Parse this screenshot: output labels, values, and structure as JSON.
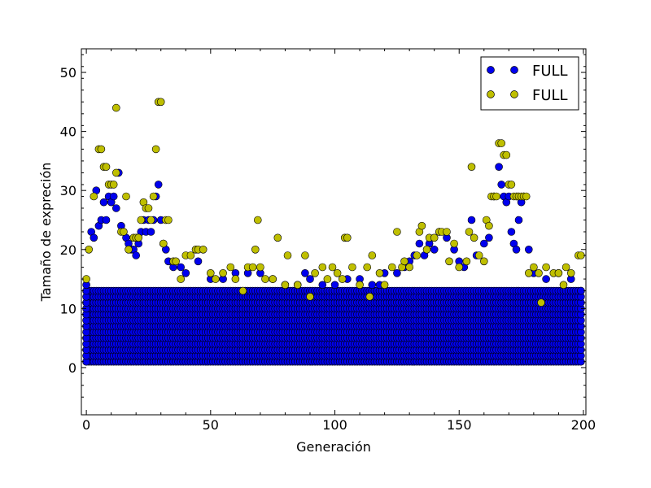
{
  "chart_data": {
    "type": "scatter",
    "title": "",
    "xlabel": "Generación",
    "ylabel": "Tamaño de expreción",
    "xlim": [
      -2,
      201
    ],
    "ylim": [
      -8,
      54
    ],
    "xticks": [
      0,
      50,
      100,
      150,
      200
    ],
    "yticks": [
      0,
      10,
      20,
      30,
      40,
      50
    ],
    "grid": false,
    "legend_position": "top-right",
    "series": [
      {
        "name": "FULL",
        "color": "#0000ee",
        "edge": "#000000",
        "points": [
          [
            0,
            1
          ],
          [
            0,
            2
          ],
          [
            0,
            3
          ],
          [
            0,
            4
          ],
          [
            0,
            5
          ],
          [
            0,
            6
          ],
          [
            0,
            7
          ],
          [
            0,
            8
          ],
          [
            0,
            9
          ],
          [
            0,
            10
          ],
          [
            0,
            11
          ],
          [
            0,
            12
          ],
          [
            0,
            13
          ],
          [
            0,
            14
          ],
          [
            2,
            23
          ],
          [
            3,
            22
          ],
          [
            4,
            30
          ],
          [
            5,
            24
          ],
          [
            6,
            25
          ],
          [
            7,
            28
          ],
          [
            8,
            25
          ],
          [
            9,
            29
          ],
          [
            10,
            28
          ],
          [
            11,
            29
          ],
          [
            12,
            27
          ],
          [
            13,
            33
          ],
          [
            14,
            24
          ],
          [
            15,
            23
          ],
          [
            16,
            22
          ],
          [
            17,
            21
          ],
          [
            18,
            20
          ],
          [
            19,
            20
          ],
          [
            20,
            19
          ],
          [
            21,
            21
          ],
          [
            22,
            23
          ],
          [
            23,
            25
          ],
          [
            24,
            23
          ],
          [
            25,
            25
          ],
          [
            26,
            23
          ],
          [
            27,
            25
          ],
          [
            28,
            29
          ],
          [
            29,
            31
          ],
          [
            30,
            25
          ],
          [
            31,
            21
          ],
          [
            32,
            20
          ],
          [
            33,
            18
          ],
          [
            35,
            17
          ],
          [
            38,
            17
          ],
          [
            40,
            16
          ],
          [
            45,
            18
          ],
          [
            50,
            15
          ],
          [
            55,
            15
          ],
          [
            60,
            16
          ],
          [
            65,
            16
          ],
          [
            70,
            16
          ],
          [
            75,
            15
          ],
          [
            80,
            14
          ],
          [
            85,
            14
          ],
          [
            88,
            16
          ],
          [
            90,
            15
          ],
          [
            95,
            14
          ],
          [
            100,
            14
          ],
          [
            105,
            15
          ],
          [
            110,
            15
          ],
          [
            115,
            14
          ],
          [
            118,
            14
          ],
          [
            120,
            16
          ],
          [
            125,
            16
          ],
          [
            128,
            17
          ],
          [
            130,
            18
          ],
          [
            132,
            19
          ],
          [
            134,
            21
          ],
          [
            136,
            19
          ],
          [
            138,
            21
          ],
          [
            140,
            20
          ],
          [
            142,
            23
          ],
          [
            145,
            22
          ],
          [
            148,
            20
          ],
          [
            150,
            18
          ],
          [
            152,
            17
          ],
          [
            155,
            25
          ],
          [
            157,
            19
          ],
          [
            160,
            21
          ],
          [
            162,
            22
          ],
          [
            164,
            29
          ],
          [
            166,
            34
          ],
          [
            167,
            31
          ],
          [
            168,
            29
          ],
          [
            169,
            28
          ],
          [
            170,
            29
          ],
          [
            171,
            23
          ],
          [
            172,
            21
          ],
          [
            173,
            20
          ],
          [
            174,
            25
          ],
          [
            175,
            28
          ],
          [
            176,
            29
          ],
          [
            178,
            20
          ],
          [
            180,
            16
          ],
          [
            185,
            15
          ],
          [
            190,
            16
          ],
          [
            195,
            15
          ],
          [
            199,
            13
          ]
        ]
      },
      {
        "name": "FULL",
        "color": "#bfbf00",
        "edge": "#000000",
        "points": [
          [
            0,
            15
          ],
          [
            1,
            20
          ],
          [
            3,
            29
          ],
          [
            5,
            37
          ],
          [
            6,
            37
          ],
          [
            7,
            34
          ],
          [
            8,
            34
          ],
          [
            9,
            31
          ],
          [
            10,
            31
          ],
          [
            11,
            31
          ],
          [
            12,
            33
          ],
          [
            12,
            44
          ],
          [
            14,
            23
          ],
          [
            15,
            23
          ],
          [
            16,
            29
          ],
          [
            17,
            20
          ],
          [
            19,
            22
          ],
          [
            20,
            22
          ],
          [
            21,
            22
          ],
          [
            22,
            25
          ],
          [
            23,
            28
          ],
          [
            24,
            27
          ],
          [
            25,
            27
          ],
          [
            26,
            25
          ],
          [
            27,
            29
          ],
          [
            28,
            37
          ],
          [
            29,
            45
          ],
          [
            30,
            45
          ],
          [
            31,
            21
          ],
          [
            32,
            25
          ],
          [
            33,
            25
          ],
          [
            35,
            18
          ],
          [
            36,
            18
          ],
          [
            38,
            15
          ],
          [
            40,
            19
          ],
          [
            42,
            19
          ],
          [
            44,
            20
          ],
          [
            45,
            20
          ],
          [
            47,
            20
          ],
          [
            50,
            16
          ],
          [
            52,
            15
          ],
          [
            55,
            16
          ],
          [
            58,
            17
          ],
          [
            60,
            15
          ],
          [
            63,
            13
          ],
          [
            65,
            17
          ],
          [
            67,
            17
          ],
          [
            68,
            20
          ],
          [
            69,
            25
          ],
          [
            70,
            17
          ],
          [
            72,
            15
          ],
          [
            75,
            15
          ],
          [
            77,
            22
          ],
          [
            80,
            14
          ],
          [
            81,
            19
          ],
          [
            85,
            14
          ],
          [
            88,
            19
          ],
          [
            90,
            12
          ],
          [
            92,
            16
          ],
          [
            95,
            17
          ],
          [
            97,
            15
          ],
          [
            99,
            17
          ],
          [
            101,
            16
          ],
          [
            103,
            15
          ],
          [
            104,
            22
          ],
          [
            105,
            22
          ],
          [
            107,
            17
          ],
          [
            110,
            14
          ],
          [
            113,
            17
          ],
          [
            114,
            12
          ],
          [
            115,
            19
          ],
          [
            118,
            16
          ],
          [
            120,
            14
          ],
          [
            123,
            17
          ],
          [
            125,
            23
          ],
          [
            127,
            17
          ],
          [
            128,
            18
          ],
          [
            130,
            17
          ],
          [
            133,
            19
          ],
          [
            134,
            23
          ],
          [
            135,
            24
          ],
          [
            137,
            20
          ],
          [
            138,
            22
          ],
          [
            140,
            22
          ],
          [
            142,
            23
          ],
          [
            143,
            23
          ],
          [
            145,
            23
          ],
          [
            146,
            18
          ],
          [
            148,
            21
          ],
          [
            150,
            17
          ],
          [
            153,
            18
          ],
          [
            154,
            23
          ],
          [
            155,
            34
          ],
          [
            156,
            22
          ],
          [
            158,
            19
          ],
          [
            160,
            18
          ],
          [
            161,
            25
          ],
          [
            162,
            24
          ],
          [
            163,
            29
          ],
          [
            164,
            29
          ],
          [
            165,
            29
          ],
          [
            166,
            38
          ],
          [
            167,
            38
          ],
          [
            168,
            36
          ],
          [
            169,
            36
          ],
          [
            170,
            31
          ],
          [
            171,
            31
          ],
          [
            172,
            29
          ],
          [
            173,
            29
          ],
          [
            174,
            29
          ],
          [
            175,
            29
          ],
          [
            176,
            29
          ],
          [
            177,
            29
          ],
          [
            178,
            16
          ],
          [
            180,
            17
          ],
          [
            182,
            16
          ],
          [
            183,
            11
          ],
          [
            185,
            17
          ],
          [
            188,
            16
          ],
          [
            190,
            16
          ],
          [
            192,
            14
          ],
          [
            193,
            17
          ],
          [
            195,
            16
          ],
          [
            198,
            19
          ],
          [
            199,
            19
          ]
        ]
      }
    ]
  }
}
